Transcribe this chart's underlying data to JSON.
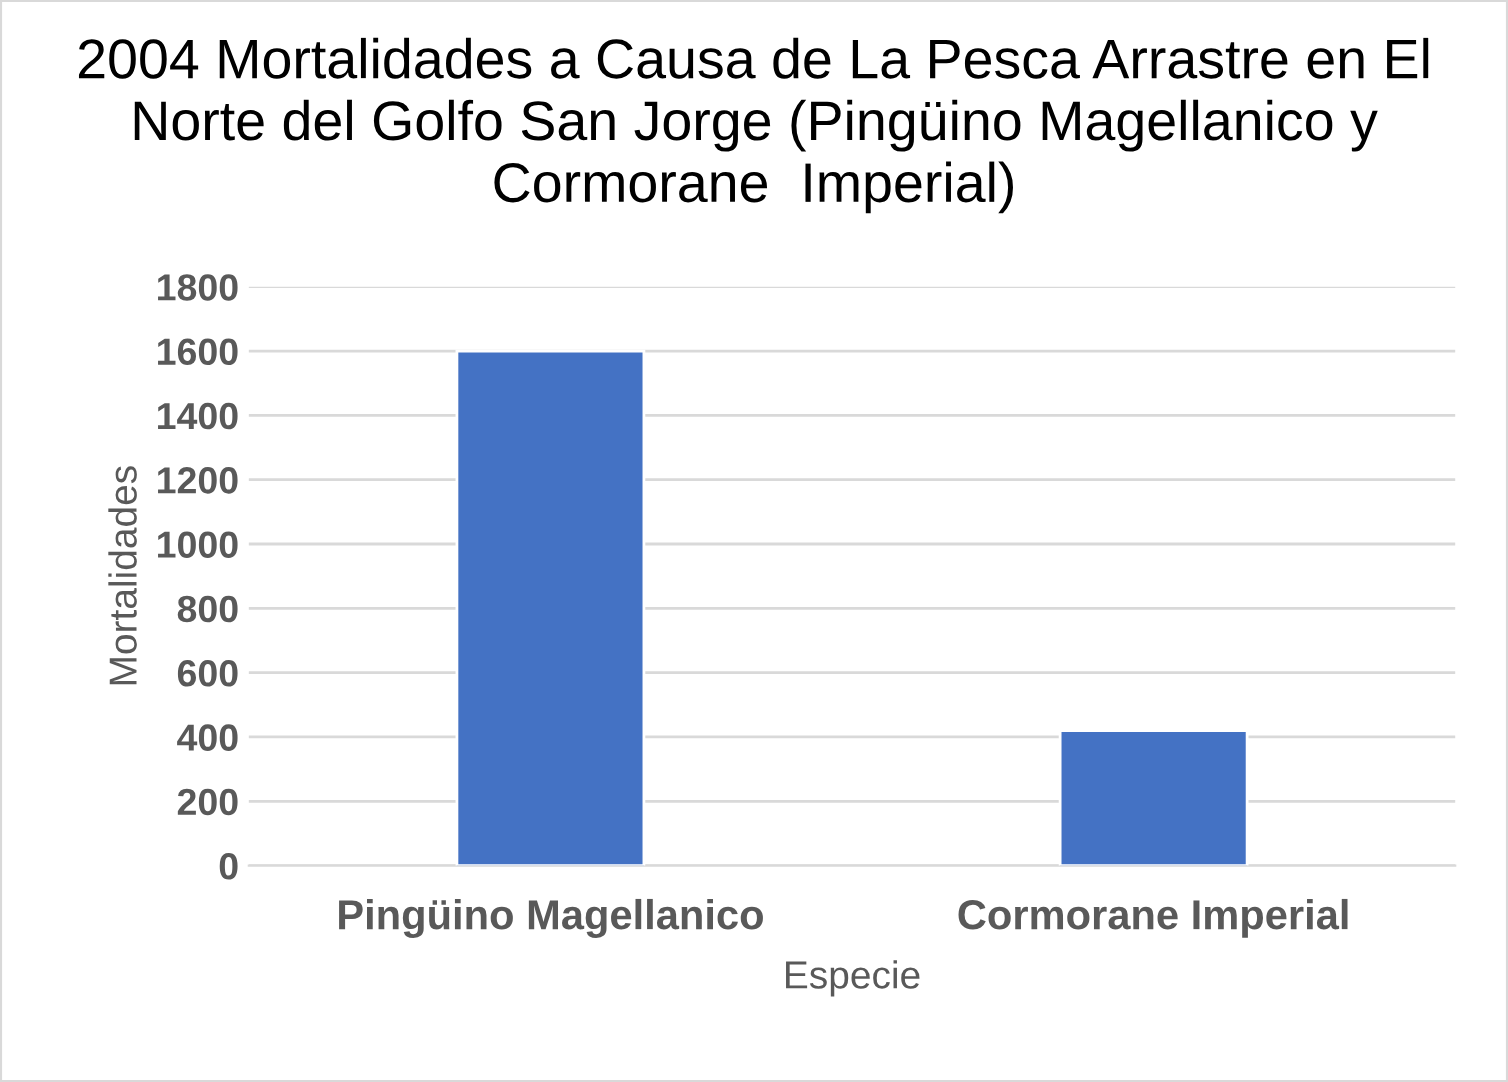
{
  "chart_data": {
    "type": "bar",
    "title": "2004 Mortalidades a Causa de La Pesca Arrastre en El Norte del Golfo San Jorge (Pingüino Magellanico y Cormorane  Imperial)",
    "xlabel": "Especie",
    "ylabel": "Mortalidades",
    "categories": [
      "Pingüino Magellanico",
      "Cormorane Imperial"
    ],
    "values": [
      1600,
      420
    ],
    "color": "#4472c4",
    "ylim": [
      0,
      1800
    ],
    "yticks": [
      0,
      200,
      400,
      600,
      800,
      1000,
      1200,
      1400,
      1600,
      1800
    ],
    "grid": "y",
    "legend": false
  }
}
